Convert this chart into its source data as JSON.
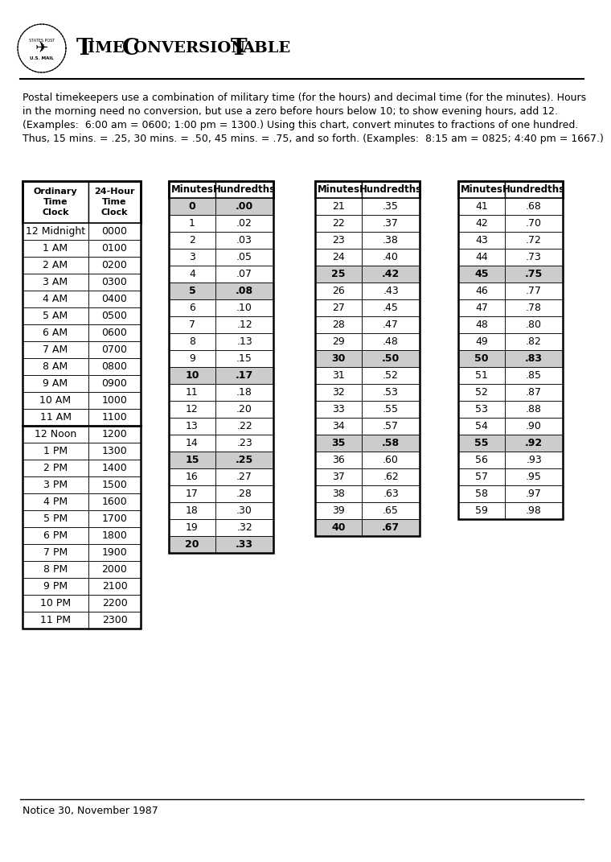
{
  "title_prefix": "T",
  "title": "IME C",
  "title2": "ONVERSION T",
  "title3": "ABLE",
  "footer": "Notice 30, November 1987",
  "description_line1": "Postal timekeepers use a combination of military time (for the hours) and decimal time (for the minutes). Hours",
  "description_line2": "in the morning need no conversion, but use a zero before hours below 10; to show evening hours, add 12.",
  "description_line3": "(Examples:  6:00 am = 0600; 1:00 pm = 1300.) Using this chart, convert minutes to fractions of one hundred.",
  "description_line4": "Thus, 15 mins. = .25, 30 mins. = .50, 45 mins. = .75, and so forth. (Examples:  8:15 am = 0825; 4:40 pm = 1667.)",
  "time_col1": [
    "12 Midnight",
    "1 AM",
    "2 AM",
    "3 AM",
    "4 AM",
    "5 AM",
    "6 AM",
    "7 AM",
    "8 AM",
    "9 AM",
    "10 AM",
    "11 AM",
    "12 Noon",
    "1 PM",
    "2 PM",
    "3 PM",
    "4 PM",
    "5 PM",
    "6 PM",
    "7 PM",
    "8 PM",
    "9 PM",
    "10 PM",
    "11 PM"
  ],
  "time_col2": [
    "0000",
    "0100",
    "0200",
    "0300",
    "0400",
    "0500",
    "0600",
    "0700",
    "0800",
    "0900",
    "1000",
    "1100",
    "1200",
    "1300",
    "1400",
    "1500",
    "1600",
    "1700",
    "1800",
    "1900",
    "2000",
    "2100",
    "2200",
    "2300"
  ],
  "min1": [
    0,
    1,
    2,
    3,
    4,
    5,
    6,
    7,
    8,
    9,
    10,
    11,
    12,
    13,
    14,
    15,
    16,
    17,
    18,
    19,
    20
  ],
  "hun1": [
    ".00",
    ".02",
    ".03",
    ".05",
    ".07",
    ".08",
    ".10",
    ".12",
    ".13",
    ".15",
    ".17",
    ".18",
    ".20",
    ".22",
    ".23",
    ".25",
    ".27",
    ".28",
    ".30",
    ".32",
    ".33"
  ],
  "bold1": [
    0,
    5,
    10,
    15,
    20
  ],
  "min2": [
    21,
    22,
    23,
    24,
    25,
    26,
    27,
    28,
    29,
    30,
    31,
    32,
    33,
    34,
    35,
    36,
    37,
    38,
    39,
    40
  ],
  "hun2": [
    ".35",
    ".37",
    ".38",
    ".40",
    ".42",
    ".43",
    ".45",
    ".47",
    ".48",
    ".50",
    ".52",
    ".53",
    ".55",
    ".57",
    ".58",
    ".60",
    ".62",
    ".63",
    ".65",
    ".67"
  ],
  "bold2": [
    4,
    9,
    14,
    19
  ],
  "min3": [
    41,
    42,
    43,
    44,
    45,
    46,
    47,
    48,
    49,
    50,
    51,
    52,
    53,
    54,
    55,
    56,
    57,
    58,
    59
  ],
  "hun3": [
    ".68",
    ".70",
    ".72",
    ".73",
    ".75",
    ".77",
    ".78",
    ".80",
    ".82",
    ".83",
    ".85",
    ".87",
    ".88",
    ".90",
    ".92",
    ".93",
    ".95",
    ".97",
    ".98"
  ],
  "bold3": [
    4,
    9,
    14
  ],
  "highlight_color": "#cccccc",
  "bg": "#ffffff"
}
